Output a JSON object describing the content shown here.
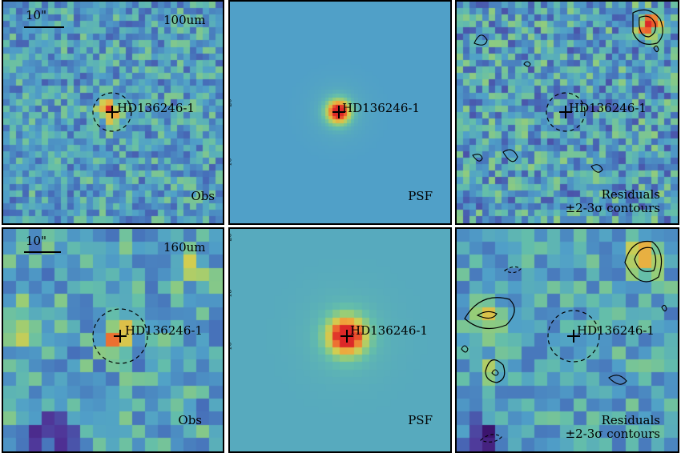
{
  "rows": [
    {
      "band": "100um",
      "scalebar": "10\"",
      "panels": [
        {
          "kind": "obs",
          "label": "Obs",
          "source": "HD136246-1"
        },
        {
          "kind": "psf",
          "label": "PSF",
          "source": "HD136246-1"
        },
        {
          "kind": "res",
          "label": "Residuals",
          "label2": "±2-3σ contours",
          "source": "HD136246-1"
        }
      ]
    },
    {
      "band": "160um",
      "scalebar": "10\"",
      "panels": [
        {
          "kind": "obs",
          "label": "Obs",
          "source": "HD136246-1"
        },
        {
          "kind": "psf",
          "label": "PSF",
          "source": "HD136246-1"
        },
        {
          "kind": "res",
          "label": "Residuals",
          "label2": "±2-3σ contours",
          "source": "HD136246-1"
        }
      ]
    }
  ],
  "psf_axis_ticks_row1": [
    "20",
    "10"
  ],
  "psf_axis_ticks_row2": [
    "20",
    "15",
    "10"
  ],
  "colors": {
    "background": "#5a9fc0",
    "peak": "#e8402a",
    "low": "#4a2a82"
  }
}
